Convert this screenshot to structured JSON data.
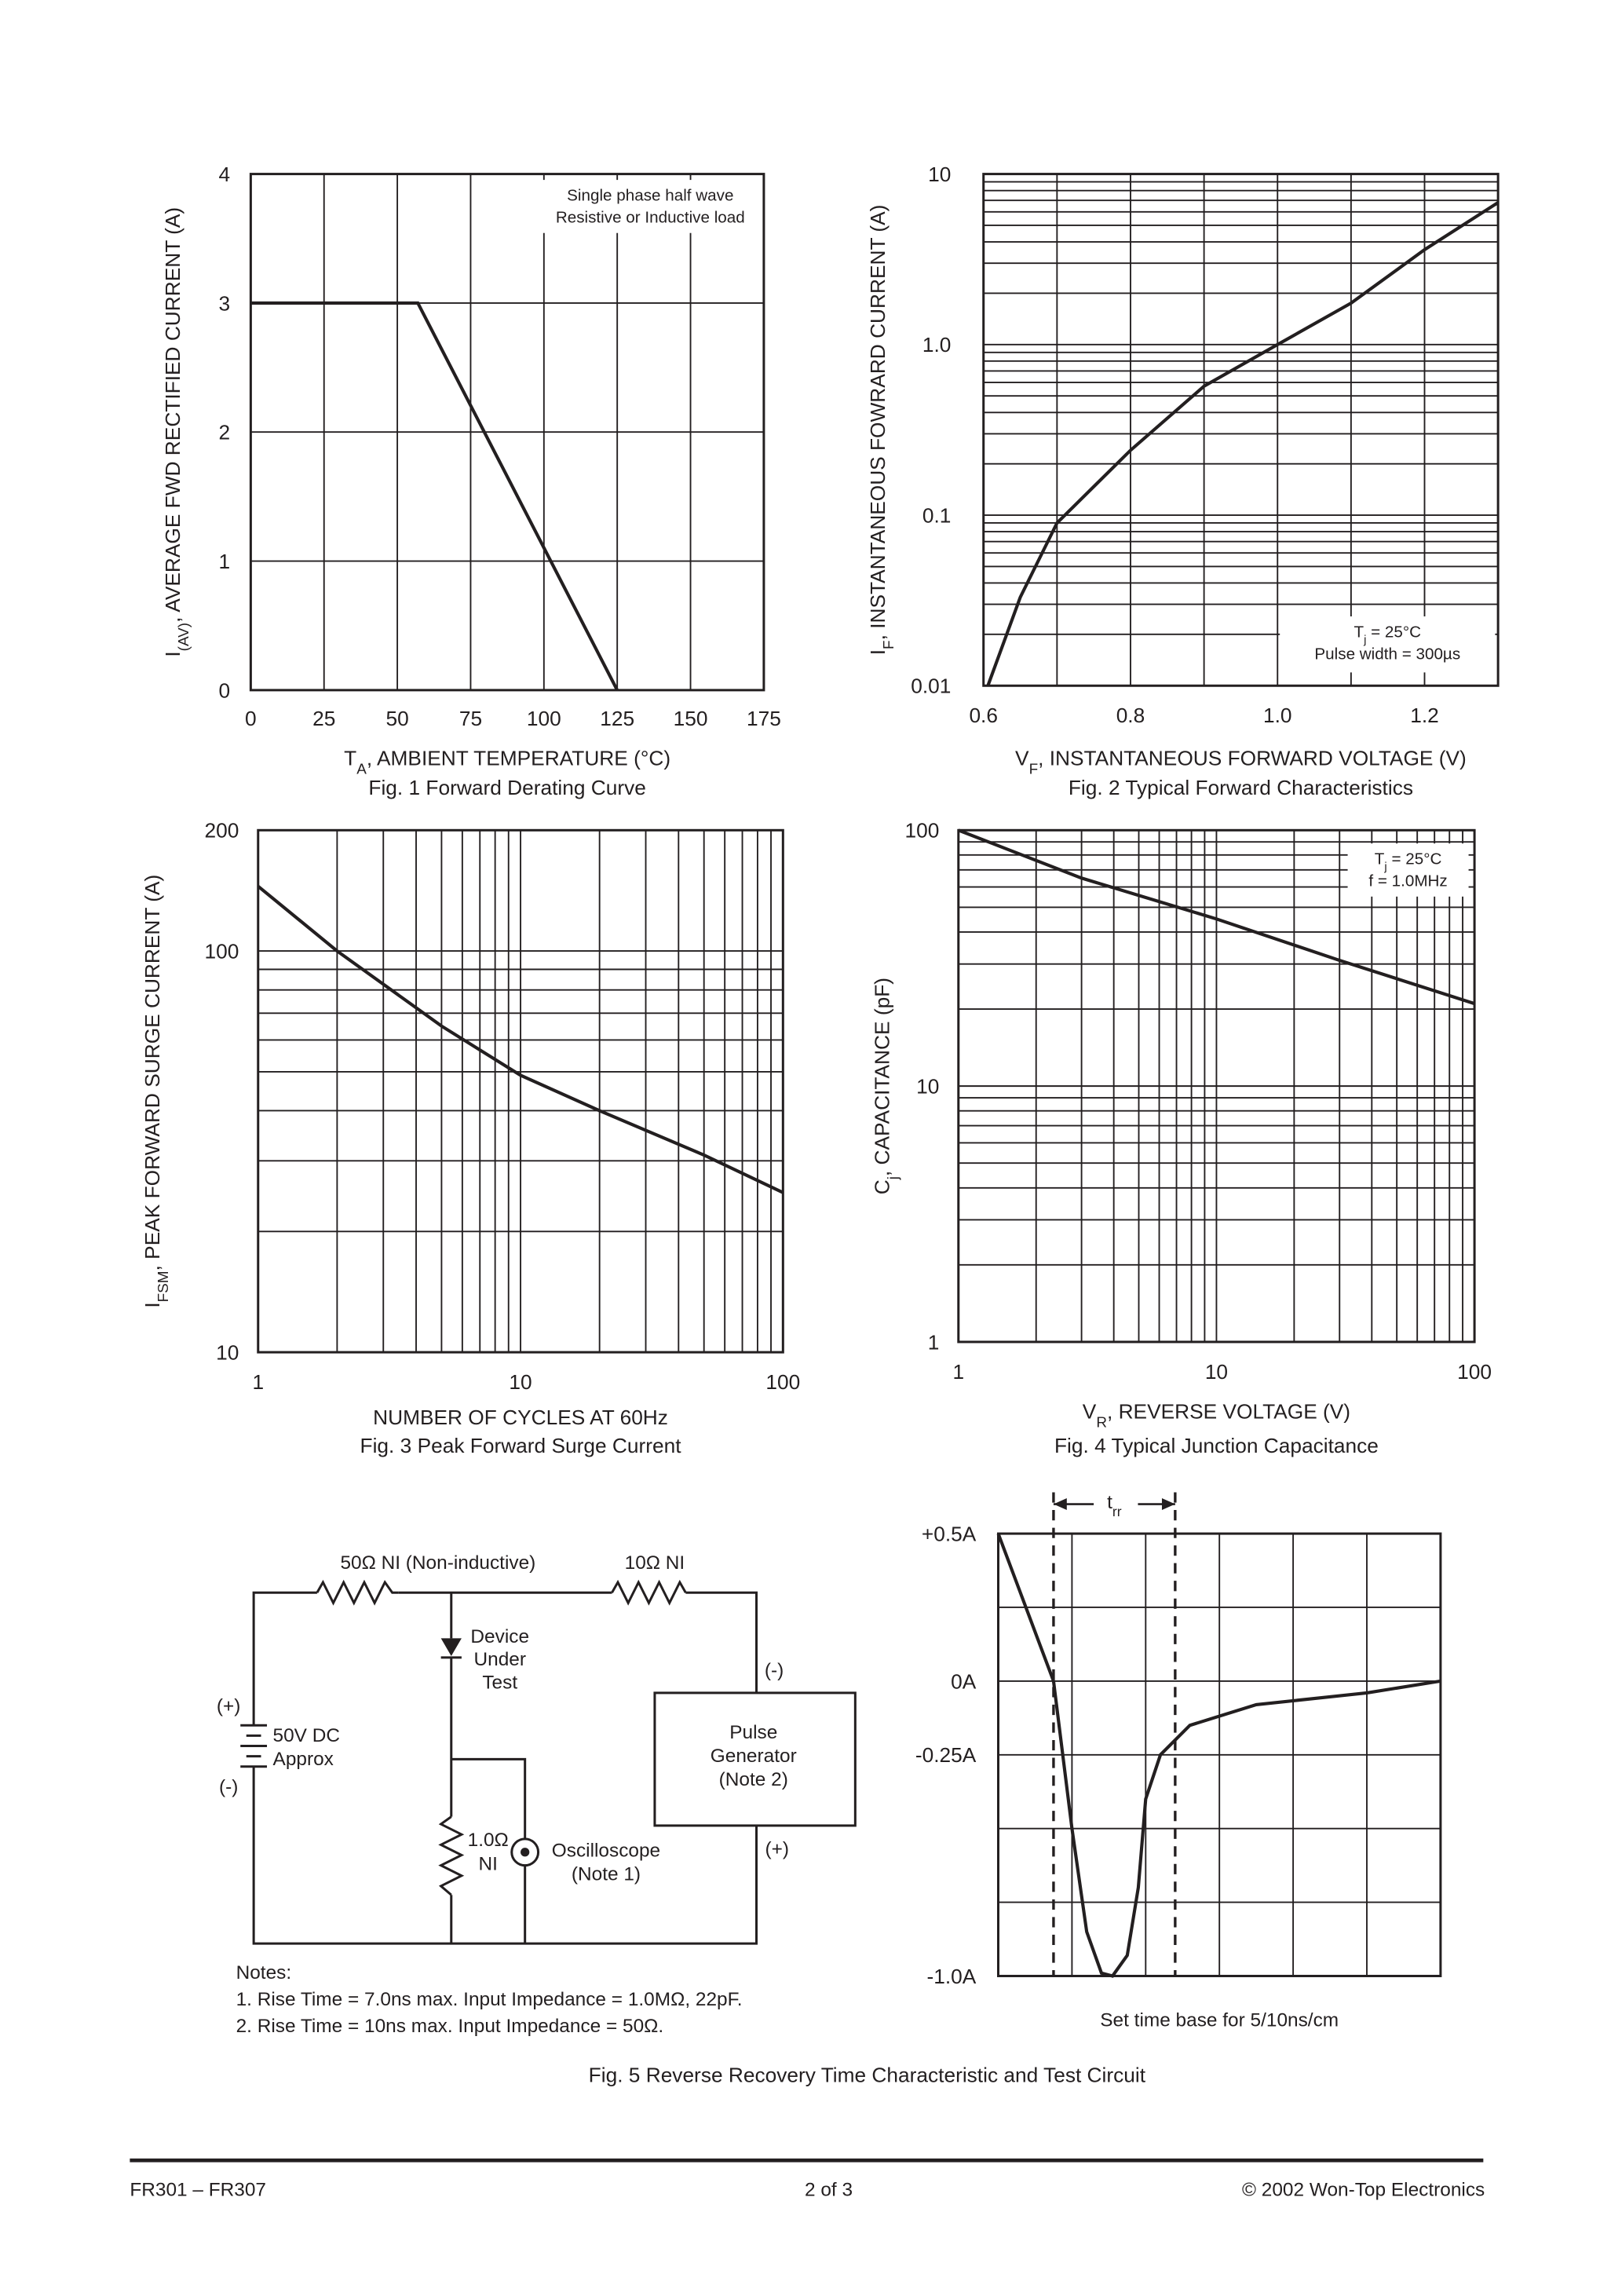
{
  "chart_data": [
    {
      "type": "line",
      "caption": "Fig. 1  Forward Derating Curve",
      "xlabel": [
        "T",
        "A",
        ", AMBIENT TEMPERATURE (°C)"
      ],
      "ylabel": [
        "I",
        "(AV)",
        ", AVERAGE FWD RECTIFIED CURRENT (A)"
      ],
      "x": [
        0,
        57,
        125
      ],
      "values": [
        3,
        3,
        0
      ],
      "color": "#231f20",
      "xlim": [
        0,
        175
      ],
      "xticks": [
        0,
        25,
        50,
        75,
        100,
        125,
        150,
        175
      ],
      "ylim": [
        0,
        4
      ],
      "yticks": [
        0,
        1,
        2,
        3,
        4
      ],
      "grid": true,
      "annotation": [
        "Single phase half wave",
        "Resistive or Inductive load"
      ]
    },
    {
      "type": "line",
      "caption": "Fig. 2  Typical Forward Characteristics",
      "xlabel": [
        "V",
        "F",
        ", INSTANTANEOUS FORWARD VOLTAGE (V)"
      ],
      "ylabel": [
        "I",
        "F",
        ", INSTANTANEOUS FOWRARD CURRENT (A)"
      ],
      "x": [
        0.606,
        0.65,
        0.7,
        0.8,
        0.9,
        1.0,
        1.1,
        1.2,
        1.3
      ],
      "values": [
        0.01,
        0.033,
        0.09,
        0.24,
        0.57,
        1.0,
        1.75,
        3.6,
        6.8
      ],
      "color": "#231f20",
      "xlim": [
        0.6,
        1.3
      ],
      "xticks": [
        0.6,
        0.8,
        {
          "value": 1,
          "label": "1.0"
        },
        1.2
      ],
      "xgrid_step": 0.1,
      "ylim": [
        0.01,
        10
      ],
      "yticks": [
        0.01,
        0.1,
        {
          "value": 1,
          "label": "1.0"
        },
        10
      ],
      "log": "y",
      "grid": true,
      "annotation": [
        [
          "T",
          "j",
          " = 25°C"
        ],
        "Pulse width = 300µs"
      ]
    },
    {
      "type": "line",
      "caption": "Fig. 3  Peak Forward Surge Current",
      "xlabel": "NUMBER OF CYCLES AT 60Hz",
      "ylabel": [
        "I",
        "FSM",
        ", PEAK FORWARD SURGE CURRENT (A)"
      ],
      "x": [
        1,
        2,
        5,
        10,
        20,
        50,
        100
      ],
      "values": [
        145,
        100,
        65,
        49,
        40,
        31,
        25
      ],
      "color": "#231f20",
      "xlim": [
        1,
        100
      ],
      "xticks": [
        1,
        10,
        100
      ],
      "ylim": [
        10,
        200
      ],
      "yticks": [
        10,
        100,
        200
      ],
      "log": "xy",
      "grid": true
    },
    {
      "type": "line",
      "caption": "Fig. 4  Typical Junction Capacitance",
      "xlabel": [
        "V",
        "R",
        ", REVERSE VOLTAGE (V)"
      ],
      "ylabel": [
        "C",
        "j",
        ", CAPACITANCE (pF)"
      ],
      "x": [
        1,
        3,
        10,
        30,
        100
      ],
      "values": [
        100,
        65,
        45,
        31,
        21
      ],
      "color": "#231f20",
      "xlim": [
        1,
        100
      ],
      "xticks": [
        1,
        10,
        100
      ],
      "ylim": [
        1,
        100
      ],
      "yticks": [
        1,
        10,
        100
      ],
      "log": "xy",
      "grid": true,
      "annotation": [
        [
          "T",
          "j",
          " = 25°C"
        ],
        "f = 1.0MHz"
      ]
    },
    {
      "type": "line",
      "caption": "Fig. 5  Reverse Recovery Time Characteristic and Test Circuit",
      "xlabel": "Set time base for 5/10ns/cm",
      "x": [
        0,
        0.3,
        0.75,
        1,
        1.2,
        1.4,
        1.55,
        1.75,
        1.9,
        2.0,
        2.2,
        2.6,
        3.5,
        5,
        6
      ],
      "values": [
        0.5,
        0.3,
        0,
        -0.5,
        -0.85,
        -0.99,
        -1,
        -0.93,
        -0.7,
        -0.4,
        -0.25,
        -0.15,
        -0.08,
        -0.04,
        0
      ],
      "color": "#231f20",
      "xlim": [
        0,
        6
      ],
      "xgrid_step": 1,
      "ylim": [
        -1,
        0.5
      ],
      "ygrid_step": 0.25,
      "yticks": [
        {
          "value": 0.5,
          "label": "+0.5A"
        },
        {
          "value": 0,
          "label": "0A"
        },
        {
          "value": -0.25,
          "label": "-0.25A"
        },
        {
          "value": -1,
          "label": "-1.0A"
        }
      ],
      "grid": true,
      "markers": [
        0.75,
        2.4
      ],
      "annotation": [
        [
          "t",
          "rr"
        ]
      ]
    }
  ],
  "circuit": {
    "r1": "50Ω NI (Non-inductive)",
    "r2": "10Ω NI",
    "dut": [
      "Device",
      "Under",
      "Test"
    ],
    "pg_minus": "(-)",
    "pg_plus": "(+)",
    "bat_plus": "(+)",
    "bat_minus": "(-)",
    "battery": [
      "50V DC",
      "Approx"
    ],
    "pulse": [
      "Pulse",
      "Generator",
      "(Note 2)"
    ],
    "r3": [
      "1.0Ω",
      "NI"
    ],
    "scope": [
      "Oscilloscope",
      "(Note 1)"
    ],
    "notes": [
      "Notes:",
      "1. Rise Time = 7.0ns max. Input Impedance = 1.0MΩ, 22pF.",
      "2. Rise Time = 10ns max. Input Impedance = 50Ω."
    ]
  },
  "footer": {
    "left": "FR301 – FR307",
    "center": "2 of 3",
    "right": "© 2002 Won-Top Electronics"
  }
}
